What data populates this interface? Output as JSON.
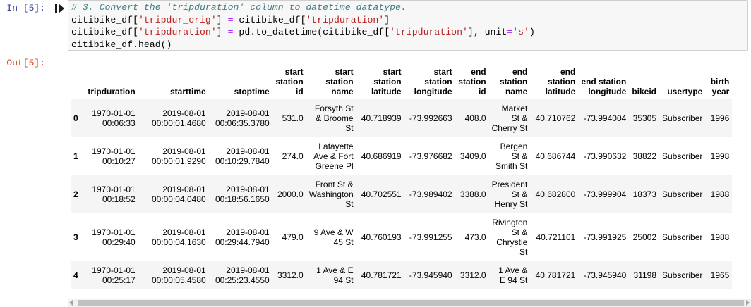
{
  "cell": {
    "in_prompt": "In [5]:",
    "out_prompt": "Out[5]:",
    "code_lines": [
      "# 3. Convert the 'tripduration' column to datetime datatype.",
      "citibike_df['tripdur_orig'] = citibike_df['tripduration']",
      "citibike_df['tripduration'] = pd.to_datetime(citibike_df['tripduration'], unit='s')",
      "citibike_df.head()"
    ]
  },
  "table": {
    "columns": [
      "tripduration",
      "starttime",
      "stoptime",
      "start station id",
      "start station name",
      "start station latitude",
      "start station longitude",
      "end station id",
      "end station name",
      "end station latitude",
      "end station longitude",
      "bikeid",
      "usertype",
      "birth year"
    ],
    "rows": [
      {
        "index": "0",
        "cells": [
          "1970-01-01 00:06:33",
          "2019-08-01 00:00:01.4680",
          "2019-08-01 00:06:35.3780",
          "531.0",
          "Forsyth St & Broome St",
          "40.718939",
          "-73.992663",
          "408.0",
          "Market St & Cherry St",
          "40.710762",
          "-73.994004",
          "35305",
          "Subscriber",
          "1996"
        ]
      },
      {
        "index": "1",
        "cells": [
          "1970-01-01 00:10:27",
          "2019-08-01 00:00:01.9290",
          "2019-08-01 00:10:29.7840",
          "274.0",
          "Lafayette Ave & Fort Greene Pl",
          "40.686919",
          "-73.976682",
          "3409.0",
          "Bergen St & Smith St",
          "40.686744",
          "-73.990632",
          "38822",
          "Subscriber",
          "1998"
        ]
      },
      {
        "index": "2",
        "cells": [
          "1970-01-01 00:18:52",
          "2019-08-01 00:00:04.0480",
          "2019-08-01 00:18:56.1650",
          "2000.0",
          "Front St & Washington St",
          "40.702551",
          "-73.989402",
          "3388.0",
          "President St & Henry St",
          "40.682800",
          "-73.999904",
          "18373",
          "Subscriber",
          "1988"
        ]
      },
      {
        "index": "3",
        "cells": [
          "1970-01-01 00:29:40",
          "2019-08-01 00:00:04.1630",
          "2019-08-01 00:29:44.7940",
          "479.0",
          "9 Ave & W 45 St",
          "40.760193",
          "-73.991255",
          "473.0",
          "Rivington St & Chrystie St",
          "40.721101",
          "-73.991925",
          "25002",
          "Subscriber",
          "1988"
        ]
      },
      {
        "index": "4",
        "cells": [
          "1970-01-01 00:25:17",
          "2019-08-01 00:00:05.4580",
          "2019-08-01 00:25:23.4550",
          "3312.0",
          "1 Ave & E 94 St",
          "40.781721",
          "-73.945940",
          "3312.0",
          "1 Ave & E 94 St",
          "40.781721",
          "-73.945940",
          "31198",
          "Subscriber",
          "1965"
        ]
      }
    ]
  }
}
